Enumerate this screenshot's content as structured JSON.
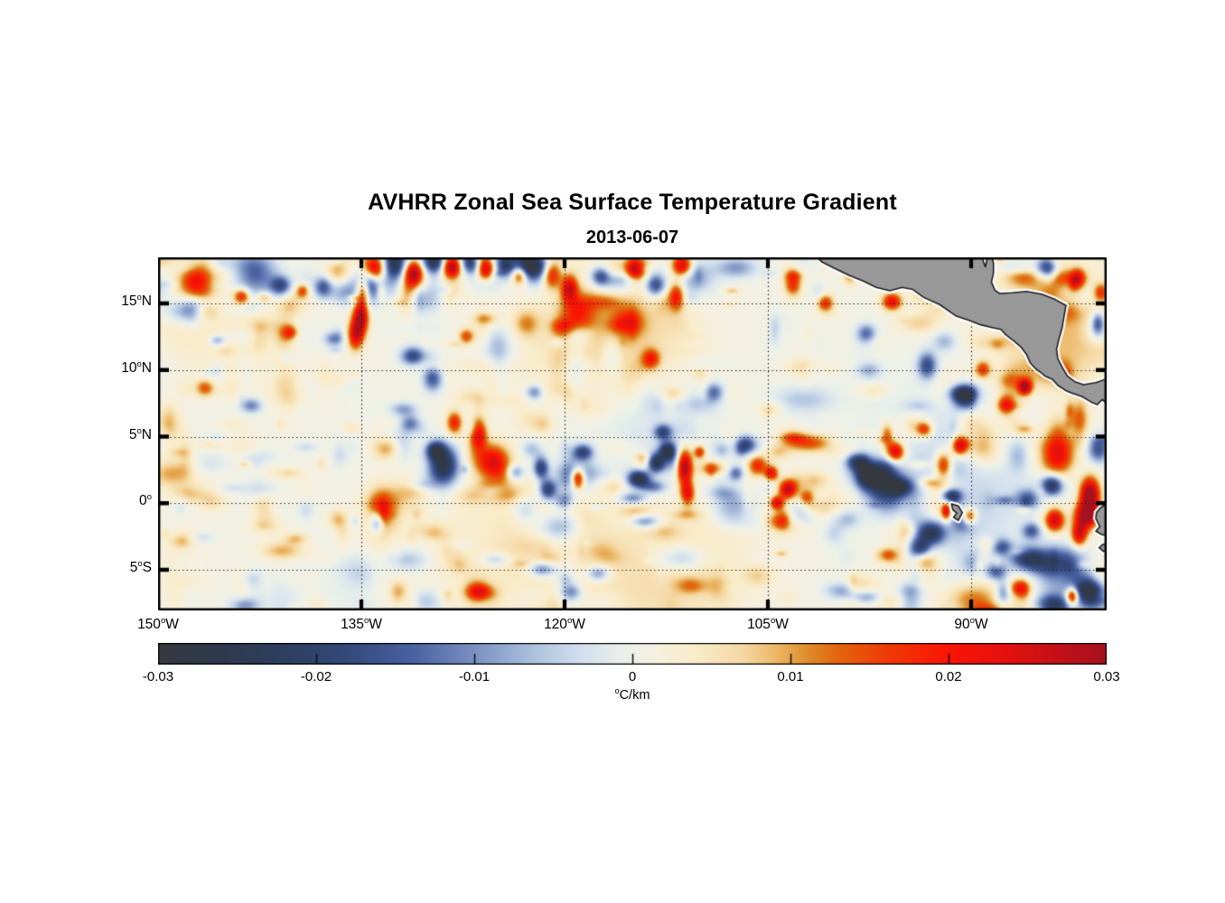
{
  "figure": {
    "title": "AVHRR Zonal Sea Surface Temperature Gradient",
    "subtitle": "2013-06-07"
  },
  "chart_data": {
    "type": "heatmap",
    "title": "AVHRR Zonal Sea Surface Temperature Gradient",
    "date": "2013-06-07",
    "variable": "zonal sea surface temperature gradient",
    "units": "°C/km",
    "lon_range": [
      -150,
      -80
    ],
    "lat_range": [
      -8.05,
      18.46
    ],
    "grid": "dotted",
    "xticks": [
      {
        "lon": -150,
        "deg": "150",
        "hemi": "W",
        "label": "150°W"
      },
      {
        "lon": -135,
        "deg": "135",
        "hemi": "W",
        "label": "135°W"
      },
      {
        "lon": -120,
        "deg": "120",
        "hemi": "W",
        "label": "120°W"
      },
      {
        "lon": -105,
        "deg": "105",
        "hemi": "W",
        "label": "105°W"
      },
      {
        "lon": -90,
        "deg": "90",
        "hemi": "W",
        "label": "90°W"
      }
    ],
    "yticks": [
      {
        "lat": 15,
        "deg": "15",
        "hemi": "N",
        "label": "15°N"
      },
      {
        "lat": 10,
        "deg": "10",
        "hemi": "N",
        "label": "10°N"
      },
      {
        "lat": 5,
        "deg": "5",
        "hemi": "N",
        "label": "5°N"
      },
      {
        "lat": 0,
        "deg": "0",
        "hemi": "",
        "label": "0°"
      },
      {
        "lat": -5,
        "deg": "5",
        "hemi": "S",
        "label": "5°S"
      }
    ],
    "colorbar": {
      "range": [
        -0.03,
        0.03
      ],
      "label": "°C/km",
      "unit_sup": "o",
      "unit_text": "C/km",
      "ticks": [
        {
          "value": -0.03,
          "label": "-0.03"
        },
        {
          "value": -0.02,
          "label": "-0.02"
        },
        {
          "value": -0.01,
          "label": "-0.01"
        },
        {
          "value": 0,
          "label": "0"
        },
        {
          "value": 0.01,
          "label": "0.01"
        },
        {
          "value": 0.02,
          "label": "0.02"
        },
        {
          "value": 0.03,
          "label": "0.03"
        }
      ]
    },
    "colormap_stops": [
      [
        -0.03,
        "#36393f"
      ],
      [
        -0.026,
        "#2f3a4e"
      ],
      [
        -0.022,
        "#2e3e5e"
      ],
      [
        -0.018,
        "#35497c"
      ],
      [
        -0.014,
        "#48619f"
      ],
      [
        -0.01,
        "#7b90c2"
      ],
      [
        -0.006,
        "#b0c4de"
      ],
      [
        -0.003,
        "#d5e1ee"
      ],
      [
        -0.001,
        "#e6edea"
      ],
      [
        0.0,
        "#edf1e8"
      ],
      [
        0.0015,
        "#f5f0e0"
      ],
      [
        0.004,
        "#f9ecca"
      ],
      [
        0.007,
        "#f4d8a4"
      ],
      [
        0.009,
        "#ecb96a"
      ],
      [
        0.011,
        "#dd8f2c"
      ],
      [
        0.013,
        "#e3650f"
      ],
      [
        0.016,
        "#ee3c06"
      ],
      [
        0.02,
        "#fb1404"
      ],
      [
        0.024,
        "#e11110"
      ],
      [
        0.027,
        "#c31017"
      ],
      [
        0.03,
        "#a5121f"
      ]
    ],
    "land": {
      "fill": "#989898",
      "outline": "#1f1f1f",
      "fringe": "#ffffff",
      "polygons": {
        "central_america": [
          [
            -101.6,
            18.7
          ],
          [
            -101.0,
            18.1
          ],
          [
            -100.2,
            17.7
          ],
          [
            -99.0,
            17.1
          ],
          [
            -98.0,
            16.7
          ],
          [
            -97.0,
            16.2
          ],
          [
            -96.0,
            15.95
          ],
          [
            -95.1,
            16.2
          ],
          [
            -94.3,
            16.05
          ],
          [
            -93.5,
            15.45
          ],
          [
            -92.3,
            14.9
          ],
          [
            -91.1,
            14.05
          ],
          [
            -90.2,
            13.75
          ],
          [
            -89.3,
            13.4
          ],
          [
            -88.3,
            13.15
          ],
          [
            -87.8,
            13.05
          ],
          [
            -87.45,
            12.65
          ],
          [
            -86.8,
            12.15
          ],
          [
            -86.3,
            11.7
          ],
          [
            -85.9,
            11.15
          ],
          [
            -85.65,
            10.55
          ],
          [
            -85.2,
            10.05
          ],
          [
            -84.9,
            9.85
          ],
          [
            -84.55,
            9.55
          ],
          [
            -84.0,
            9.3
          ],
          [
            -83.6,
            8.85
          ],
          [
            -83.0,
            8.45
          ],
          [
            -82.4,
            8.2
          ],
          [
            -81.8,
            8.0
          ],
          [
            -81.15,
            7.6
          ],
          [
            -80.7,
            7.4
          ],
          [
            -80.3,
            7.8
          ],
          [
            -80.05,
            7.5
          ],
          [
            -79.7,
            7.6
          ],
          [
            -79.7,
            9.45
          ],
          [
            -80.8,
            9.05
          ],
          [
            -81.7,
            8.9
          ],
          [
            -82.3,
            9.1
          ],
          [
            -82.9,
            9.55
          ],
          [
            -83.3,
            10.25
          ],
          [
            -83.6,
            10.85
          ],
          [
            -83.7,
            11.55
          ],
          [
            -83.5,
            12.4
          ],
          [
            -83.3,
            13.1
          ],
          [
            -83.15,
            14.0
          ],
          [
            -83.0,
            14.85
          ],
          [
            -83.8,
            15.3
          ],
          [
            -84.8,
            15.7
          ],
          [
            -85.9,
            15.9
          ],
          [
            -87.0,
            15.8
          ],
          [
            -87.9,
            15.75
          ],
          [
            -88.25,
            16.0
          ],
          [
            -88.5,
            16.6
          ],
          [
            -88.35,
            17.3
          ],
          [
            -88.35,
            18.0
          ],
          [
            -88.5,
            18.7
          ],
          [
            -88.75,
            18.7
          ],
          [
            -88.95,
            17.75
          ],
          [
            -89.3,
            18.7
          ]
        ],
        "south_america_north": [
          [
            -79.7,
            0.15
          ],
          [
            -80.1,
            -0.1
          ],
          [
            -80.45,
            -0.35
          ],
          [
            -80.75,
            -0.7
          ],
          [
            -80.8,
            -1.15
          ],
          [
            -80.5,
            -1.75
          ],
          [
            -80.8,
            -2.1
          ],
          [
            -80.35,
            -2.35
          ],
          [
            -79.7,
            -2.5
          ]
        ],
        "south_america_south": [
          [
            -79.7,
            -2.95
          ],
          [
            -80.3,
            -3.1
          ],
          [
            -80.55,
            -3.35
          ],
          [
            -80.25,
            -3.6
          ],
          [
            -79.7,
            -3.75
          ]
        ],
        "galapagos": [
          [
            -91.45,
            -0.05
          ],
          [
            -90.95,
            -0.2
          ],
          [
            -90.65,
            -0.7
          ],
          [
            -90.95,
            -1.3
          ],
          [
            -91.3,
            -1.05
          ],
          [
            -91.05,
            -0.75
          ],
          [
            -91.35,
            -0.5
          ]
        ]
      }
    },
    "features_key": [
      "lon",
      "lat",
      "rx_deg",
      "ry_deg",
      "amplitude_C_per_km"
    ],
    "features": [
      [
        -134.2,
        17.5,
        0.55,
        0.75,
        0.03
      ],
      [
        -132.6,
        18.1,
        0.6,
        0.8,
        -0.026
      ],
      [
        -131.2,
        17.3,
        0.5,
        0.7,
        0.03
      ],
      [
        -129.7,
        18.2,
        0.6,
        0.6,
        -0.024
      ],
      [
        -128.4,
        17.8,
        0.5,
        0.6,
        0.03
      ],
      [
        -127.1,
        18.3,
        0.5,
        0.6,
        -0.02
      ],
      [
        -125.9,
        17.6,
        0.45,
        0.6,
        0.028
      ],
      [
        -124.5,
        18.0,
        0.5,
        0.6,
        -0.018
      ],
      [
        -123.4,
        17.2,
        0.4,
        0.5,
        0.024
      ],
      [
        -122.6,
        17.9,
        0.95,
        0.75,
        -0.032
      ],
      [
        -121.0,
        17.3,
        0.45,
        0.8,
        0.028
      ],
      [
        -119.7,
        16.2,
        0.4,
        0.7,
        0.022
      ],
      [
        -117.4,
        17.1,
        0.5,
        0.5,
        -0.016
      ],
      [
        -114.9,
        17.6,
        0.45,
        0.5,
        0.018
      ],
      [
        -113.3,
        16.4,
        0.55,
        0.6,
        -0.02
      ],
      [
        -111.4,
        17.9,
        0.5,
        0.55,
        0.026
      ],
      [
        -111.8,
        15.6,
        0.4,
        0.75,
        0.018
      ],
      [
        -134.5,
        16.9,
        0.5,
        0.7,
        -0.02
      ],
      [
        -134.9,
        16.1,
        0.35,
        0.7,
        0.022
      ],
      [
        -135.1,
        14.1,
        0.4,
        0.9,
        0.028
      ],
      [
        -135.5,
        12.7,
        0.4,
        0.8,
        0.022
      ],
      [
        -141.0,
        16.4,
        0.55,
        0.5,
        -0.018
      ],
      [
        -137.9,
        16.3,
        0.45,
        0.55,
        -0.016
      ],
      [
        -139.4,
        16.0,
        0.35,
        0.4,
        0.016
      ],
      [
        -143.9,
        15.6,
        0.4,
        0.4,
        0.018
      ],
      [
        -140.3,
        12.9,
        0.4,
        0.4,
        0.014
      ],
      [
        -137.1,
        12.4,
        0.5,
        0.4,
        -0.012
      ],
      [
        -145.7,
        12.3,
        0.4,
        0.3,
        -0.01
      ],
      [
        -129.6,
        4.1,
        0.5,
        0.5,
        -0.022
      ],
      [
        -129.0,
        2.9,
        0.75,
        1.0,
        -0.028
      ],
      [
        -125.4,
        3.2,
        0.85,
        0.9,
        0.022
      ],
      [
        -126.4,
        5.3,
        0.4,
        0.8,
        0.02
      ],
      [
        -128.2,
        6.1,
        0.4,
        0.6,
        0.018
      ],
      [
        -123.7,
        2.4,
        0.45,
        0.4,
        -0.012
      ],
      [
        -121.8,
        2.7,
        0.4,
        0.6,
        -0.022
      ],
      [
        -121.3,
        1.1,
        0.45,
        0.55,
        -0.022
      ],
      [
        -119.1,
        1.9,
        0.35,
        0.55,
        0.03
      ],
      [
        -120.1,
        0.2,
        0.5,
        0.4,
        -0.018
      ],
      [
        -133.9,
        -1.4,
        0.4,
        0.6,
        -0.018
      ],
      [
        -114.6,
        1.9,
        0.55,
        0.45,
        -0.028
      ],
      [
        -113.4,
        3.1,
        0.5,
        0.5,
        -0.032
      ],
      [
        -112.5,
        4.0,
        0.4,
        0.45,
        -0.024
      ],
      [
        -112.8,
        5.4,
        0.45,
        0.4,
        -0.018
      ],
      [
        -111.2,
        2.8,
        0.4,
        0.9,
        0.03
      ],
      [
        -111.0,
        0.8,
        0.35,
        0.6,
        0.02
      ],
      [
        -110.1,
        3.9,
        0.3,
        0.35,
        0.018
      ],
      [
        -115.0,
        0.4,
        0.7,
        0.35,
        -0.016
      ],
      [
        -114.2,
        -1.3,
        0.8,
        0.35,
        -0.014
      ],
      [
        -118.7,
        3.9,
        0.5,
        0.4,
        -0.018
      ],
      [
        -107.4,
        2.3,
        0.4,
        0.4,
        -0.014
      ],
      [
        -105.8,
        2.9,
        0.5,
        0.55,
        0.018
      ],
      [
        -104.8,
        2.3,
        0.35,
        0.4,
        0.022
      ],
      [
        -103.6,
        1.1,
        0.45,
        0.5,
        0.026
      ],
      [
        -106.7,
        4.5,
        0.5,
        0.45,
        -0.016
      ],
      [
        -104.4,
        0.1,
        0.35,
        0.35,
        0.022
      ],
      [
        -102.2,
        0.5,
        0.4,
        0.4,
        0.016
      ],
      [
        -98.6,
        3.2,
        0.5,
        0.45,
        -0.018
      ],
      [
        -97.2,
        2.2,
        1.0,
        0.75,
        -0.028
      ],
      [
        -95.3,
        1.3,
        0.6,
        0.45,
        -0.022
      ],
      [
        -95.6,
        3.9,
        0.45,
        0.5,
        0.022
      ],
      [
        -92.1,
        2.9,
        0.45,
        0.7,
        0.024
      ],
      [
        -90.9,
        4.4,
        0.4,
        0.5,
        0.026
      ],
      [
        -93.5,
        5.6,
        0.4,
        0.4,
        0.016
      ],
      [
        -91.5,
        0.6,
        0.5,
        0.4,
        -0.022
      ],
      [
        -91.9,
        -0.5,
        0.25,
        0.5,
        0.022
      ],
      [
        -90.2,
        -0.9,
        0.35,
        0.4,
        0.02
      ],
      [
        -93.0,
        -2.2,
        0.7,
        0.6,
        -0.022
      ],
      [
        -93.8,
        -3.3,
        0.5,
        0.45,
        -0.016
      ],
      [
        -96.2,
        -3.8,
        0.5,
        0.4,
        0.014
      ],
      [
        -94.6,
        -5.3,
        0.5,
        0.4,
        0.014
      ],
      [
        -99.5,
        -6.5,
        0.8,
        0.5,
        -0.012
      ],
      [
        -87.8,
        -3.2,
        0.5,
        0.45,
        -0.016
      ],
      [
        -85.6,
        -2.0,
        0.5,
        0.45,
        -0.016
      ],
      [
        -81.3,
        0.7,
        0.5,
        0.9,
        0.034
      ],
      [
        -81.6,
        -0.9,
        0.6,
        0.7,
        0.03
      ],
      [
        -82.1,
        -2.3,
        0.4,
        0.6,
        0.024
      ],
      [
        -83.9,
        -1.2,
        0.5,
        0.6,
        0.026
      ],
      [
        -84.1,
        1.4,
        0.55,
        0.55,
        -0.024
      ],
      [
        -85.8,
        0.4,
        0.7,
        0.5,
        -0.018
      ],
      [
        -83.6,
        -4.9,
        1.2,
        1.1,
        -0.03
      ],
      [
        -81.3,
        -6.7,
        0.8,
        0.8,
        -0.032
      ],
      [
        -85.9,
        -4.1,
        0.9,
        0.6,
        -0.022
      ],
      [
        -83.9,
        -7.6,
        1.0,
        0.6,
        -0.026
      ],
      [
        -82.6,
        -6.9,
        0.3,
        0.45,
        0.026
      ],
      [
        -88.2,
        -5.1,
        0.55,
        0.45,
        -0.016
      ],
      [
        -86.5,
        -6.3,
        0.5,
        0.4,
        0.014
      ],
      [
        -84.4,
        17.6,
        0.55,
        0.7,
        -0.026
      ],
      [
        -82.2,
        16.9,
        0.4,
        0.55,
        0.018
      ],
      [
        -80.7,
        13.6,
        0.35,
        0.6,
        -0.018
      ],
      [
        -80.5,
        15.9,
        0.35,
        0.45,
        0.014
      ],
      [
        -95.9,
        15.2,
        0.5,
        0.45,
        0.022
      ],
      [
        -100.9,
        15.1,
        0.45,
        0.45,
        0.02
      ],
      [
        -103.2,
        16.7,
        0.45,
        0.75,
        0.018
      ],
      [
        -86.1,
        8.8,
        0.35,
        0.4,
        0.028
      ],
      [
        -87.5,
        7.4,
        0.45,
        0.5,
        0.018
      ],
      [
        -90.6,
        8.0,
        0.55,
        0.6,
        -0.02
      ],
      [
        -93.3,
        10.4,
        0.5,
        0.7,
        -0.018
      ],
      [
        -89.2,
        10.1,
        0.4,
        0.45,
        0.016
      ],
      [
        -97.8,
        12.8,
        0.5,
        0.5,
        -0.014
      ],
      [
        -146.6,
        8.7,
        0.5,
        0.45,
        0.013
      ],
      [
        -143.2,
        7.4,
        0.55,
        0.4,
        -0.012
      ],
      [
        -131.3,
        11.1,
        0.55,
        0.5,
        -0.014
      ],
      [
        -129.8,
        9.4,
        0.5,
        0.65,
        -0.016
      ],
      [
        -127.3,
        12.6,
        0.4,
        0.4,
        0.014
      ],
      [
        -122.3,
        8.4,
        0.45,
        0.4,
        -0.012
      ],
      [
        -113.7,
        10.9,
        0.45,
        0.5,
        0.016
      ],
      [
        -109.0,
        8.4,
        0.5,
        0.5,
        -0.014
      ],
      [
        -117.6,
        -5.2,
        0.6,
        0.4,
        -0.013
      ],
      [
        -121.7,
        -4.9,
        0.7,
        0.4,
        -0.014
      ],
      [
        -126.3,
        -6.6,
        0.7,
        0.4,
        0.013
      ]
    ],
    "noise": {
      "seed": 20130607,
      "base": 0.0008,
      "small": {
        "count": 620,
        "r": [
          0.22,
          0.8
        ],
        "amp": 0.0105,
        "bias": 0.0012
      },
      "medium": {
        "count": 95,
        "r": [
          0.45,
          1.1
        ],
        "amp": [
          0.009,
          0.019
        ]
      },
      "large": {
        "count": 26,
        "r": [
          2.0,
          5.0
        ],
        "amp": [
          0.002,
          0.0045
        ]
      }
    }
  }
}
